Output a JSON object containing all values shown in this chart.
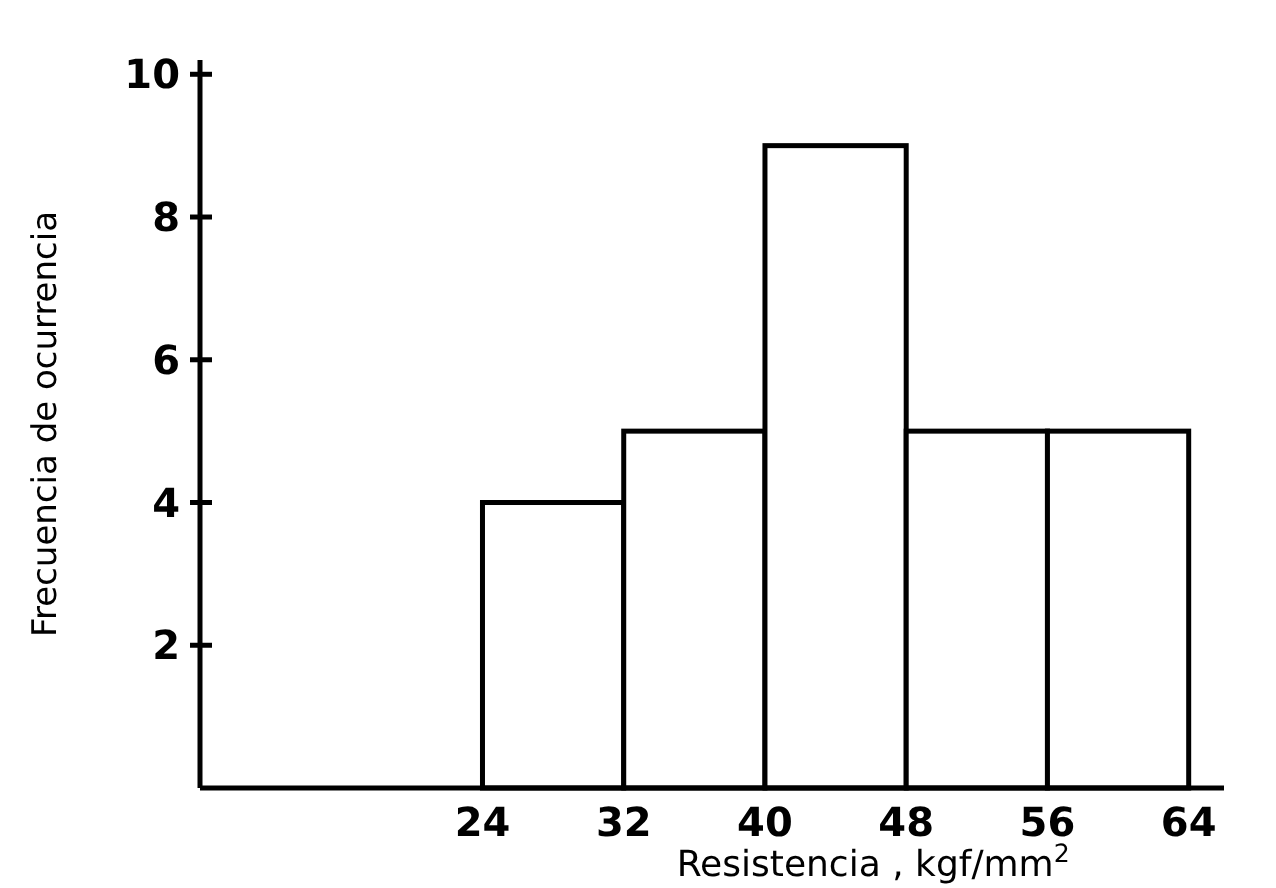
{
  "chart_data": {
    "type": "histogram",
    "xlabel": "Resistencia , kgf/mm$^{2}$",
    "ylabel": "Frecuencia de ocurrencia",
    "bins": [
      24,
      32,
      40,
      48,
      56,
      64
    ],
    "values": [
      4,
      5,
      9,
      5,
      5
    ],
    "color": "#ffffff",
    "xlim": [
      8,
      66
    ],
    "ylim": [
      0,
      10.2
    ],
    "xticks": [
      24,
      32,
      40,
      48,
      56,
      64
    ],
    "yticks": [
      2,
      4,
      6,
      8,
      10
    ],
    "grid": false
  }
}
